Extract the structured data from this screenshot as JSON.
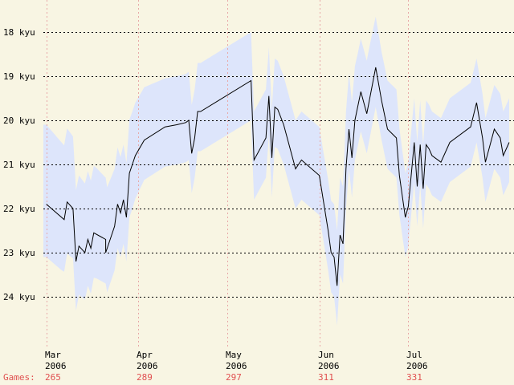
{
  "colors": {
    "background": "#f8f5e3",
    "band": "#dde5fb",
    "line": "#000000",
    "grid_h": "#000000",
    "grid_v": "#e8a8a8",
    "games": "#e05050"
  },
  "chart_data": {
    "type": "line",
    "title": "",
    "xlabel": "",
    "ylabel": "",
    "grid": true,
    "x_range": [
      "2006-02-28",
      "2006-08-04"
    ],
    "y_ticks": [
      {
        "label": "18 kyu",
        "value": 18
      },
      {
        "label": "19 kyu",
        "value": 19
      },
      {
        "label": "20 kyu",
        "value": 20
      },
      {
        "label": "21 kyu",
        "value": 21
      },
      {
        "label": "22 kyu",
        "value": 22
      },
      {
        "label": "23 kyu",
        "value": 23
      },
      {
        "label": "24 kyu",
        "value": 24
      }
    ],
    "x_ticks": [
      {
        "month": "Mar",
        "year": "2006",
        "games": "265",
        "date": "2006-03-01"
      },
      {
        "month": "Apr",
        "year": "2006",
        "games": "289",
        "date": "2006-04-01"
      },
      {
        "month": "May",
        "year": "2006",
        "games": "297",
        "date": "2006-05-01"
      },
      {
        "month": "Jun",
        "year": "2006",
        "games": "311",
        "date": "2006-06-01"
      },
      {
        "month": "Jul",
        "year": "2006",
        "games": "331",
        "date": "2006-07-01"
      }
    ],
    "games_label": "Games:",
    "series": [
      {
        "x": [
          "2006-03-01",
          "2006-03-07",
          "2006-03-08",
          "2006-03-10",
          "2006-03-11",
          "2006-03-12",
          "2006-03-14",
          "2006-03-15",
          "2006-03-16",
          "2006-03-17",
          "2006-03-21",
          "2006-03-21",
          "2006-03-24",
          "2006-03-25",
          "2006-03-26",
          "2006-03-27",
          "2006-03-28",
          "2006-03-29",
          "2006-03-31",
          "2006-04-03",
          "2006-04-10",
          "2006-04-14",
          "2006-04-17",
          "2006-04-18",
          "2006-04-19",
          "2006-04-20",
          "2006-04-21",
          "2006-04-22",
          "2006-05-09",
          "2006-05-10",
          "2006-05-14",
          "2006-05-15",
          "2006-05-16",
          "2006-05-17",
          "2006-05-18",
          "2006-05-20",
          "2006-05-24",
          "2006-05-26",
          "2006-06-01",
          "2006-06-04",
          "2006-06-05",
          "2006-06-06",
          "2006-06-07",
          "2006-06-08",
          "2006-06-09",
          "2006-06-10",
          "2006-06-11",
          "2006-06-12",
          "2006-06-13",
          "2006-06-15",
          "2006-06-17",
          "2006-06-20",
          "2006-06-22",
          "2006-06-24",
          "2006-06-27",
          "2006-06-28",
          "2006-06-30",
          "2006-07-01",
          "2006-07-03",
          "2006-07-04",
          "2006-07-05",
          "2006-07-06",
          "2006-07-07",
          "2006-07-08",
          "2006-07-09",
          "2006-07-12",
          "2006-07-15",
          "2006-07-22",
          "2006-07-24",
          "2006-07-26",
          "2006-07-27",
          "2006-07-28",
          "2006-07-30",
          "2006-08-01",
          "2006-08-02",
          "2006-08-04"
        ],
        "y": [
          21.9,
          22.25,
          21.85,
          22.0,
          23.2,
          22.85,
          23.0,
          22.7,
          22.9,
          22.55,
          22.7,
          23.0,
          22.4,
          21.9,
          22.1,
          21.8,
          22.2,
          21.2,
          20.8,
          20.45,
          20.15,
          20.1,
          20.05,
          20.0,
          20.75,
          20.4,
          19.8,
          19.8,
          19.1,
          20.9,
          20.4,
          19.45,
          20.85,
          19.7,
          19.75,
          20.1,
          21.1,
          20.9,
          21.25,
          22.5,
          23.0,
          23.1,
          23.75,
          22.6,
          22.8,
          21.1,
          20.2,
          20.85,
          20.0,
          19.35,
          19.85,
          18.8,
          19.55,
          20.2,
          20.4,
          21.25,
          22.2,
          21.95,
          20.5,
          21.5,
          20.55,
          21.55,
          20.55,
          20.65,
          20.8,
          20.95,
          20.5,
          20.15,
          19.6,
          20.4,
          20.95,
          20.7,
          20.2,
          20.4,
          20.8,
          20.5
        ]
      }
    ],
    "band": {
      "x": [
        "2006-03-01",
        "2006-03-06",
        "2006-03-12",
        "2006-03-18",
        "2006-03-24",
        "2006-03-30",
        "2006-04-03",
        "2006-04-10",
        "2006-04-15",
        "2006-04-21",
        "2006-05-01",
        "2006-05-09",
        "2006-05-14",
        "2006-05-20",
        "2006-05-27",
        "2006-06-02",
        "2006-06-06",
        "2006-06-08",
        "2006-06-10",
        "2006-06-14",
        "2006-06-18",
        "2006-06-22",
        "2006-06-27",
        "2006-06-30",
        "2006-07-06",
        "2006-07-12",
        "2006-07-20",
        "2006-07-27",
        "2006-08-01",
        "2006-08-04"
      ],
      "low": [
        -1.8,
        -1.7,
        -1.6,
        -1.5,
        -1.3,
        -1.2,
        -1.2,
        -1.1,
        -1.1,
        -1.1,
        -1.1,
        -1.1,
        -1.1,
        -1.1,
        -1.1,
        -1.1,
        -1.2,
        -1.3,
        -1.3,
        -1.2,
        -1.2,
        -1.1,
        -1.1,
        -1.0,
        -1.0,
        -1.0,
        -1.0,
        -1.0,
        -1.0,
        -1.0
      ],
      "high": [
        1.2,
        1.2,
        1.1,
        1.0,
        1.0,
        1.0,
        0.9,
        0.9,
        0.9,
        0.9,
        0.9,
        0.9,
        0.9,
        0.9,
        0.9,
        0.9,
        0.9,
        0.9,
        0.9,
        0.9,
        0.9,
        0.9,
        0.9,
        0.9,
        0.9,
        0.9,
        0.9,
        0.9,
        0.9,
        0.9
      ]
    }
  }
}
